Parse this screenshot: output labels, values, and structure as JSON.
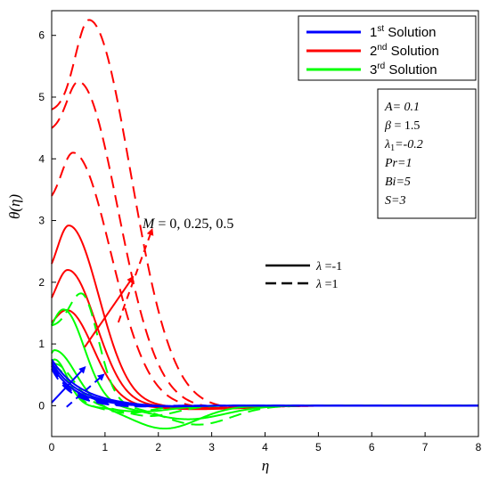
{
  "chart_data": {
    "type": "line",
    "xlabel": "η",
    "ylabel": "θ(η)",
    "xlim": [
      0,
      8
    ],
    "ylim": [
      -0.5,
      6.4
    ],
    "xticks": [
      "0",
      "1",
      "2",
      "3",
      "4",
      "5",
      "6",
      "7",
      "8"
    ],
    "yticks": [
      "0",
      "1",
      "2",
      "3",
      "4",
      "5",
      "6"
    ],
    "grid": false,
    "legend": {
      "placement": "top-right",
      "entries": [
        {
          "name": "1st Solution",
          "base": "1",
          "sup": "st",
          "rest": " Solution",
          "color": "#0000ff"
        },
        {
          "name": "2nd Solution",
          "base": "2",
          "sup": "nd",
          "rest": " Solution",
          "color": "#ff0000"
        },
        {
          "name": "3rd Solution",
          "base": "3",
          "sup": "rd",
          "rest": " Solution",
          "color": "#00ff00"
        }
      ]
    },
    "parameters": [
      "A= 0.1",
      "β = 1.5",
      "λ₁=-0.2",
      "Pr=1",
      "Bi=5",
      "S=3"
    ],
    "style_legend": [
      {
        "label": "λ =-1",
        "dash": "solid"
      },
      {
        "label": "λ =1",
        "dash": "dashed"
      }
    ],
    "annotation": "M = 0, 0.25, 0.5",
    "colors": {
      "first": "#0000ff",
      "second": "#ff0000",
      "third": "#00ff00"
    },
    "series": [
      {
        "solution": "1st",
        "lambda": -1,
        "M": 0,
        "peak": 0.75,
        "peak_x": 0.0,
        "decay": 1.8,
        "min": -0.02,
        "min_x": 2.0,
        "min_w": 0.8,
        "tail": 0.5
      },
      {
        "solution": "1st",
        "lambda": -1,
        "M": 0.25,
        "peak": 0.7,
        "peak_x": 0.0,
        "decay": 2.0,
        "min": -0.02,
        "min_x": 2.0,
        "min_w": 0.8,
        "tail": 0.5
      },
      {
        "solution": "1st",
        "lambda": -1,
        "M": 0.5,
        "peak": 0.65,
        "peak_x": 0.0,
        "decay": 2.2,
        "min": -0.02,
        "min_x": 2.0,
        "min_w": 0.8,
        "tail": 0.5
      },
      {
        "solution": "1st",
        "lambda": 1,
        "M": 0,
        "peak": 0.68,
        "peak_x": 0.0,
        "decay": 2.4,
        "min": -0.02,
        "min_x": 1.5,
        "min_w": 0.6,
        "tail": 0.4
      },
      {
        "solution": "1st",
        "lambda": 1,
        "M": 0.25,
        "peak": 0.64,
        "peak_x": 0.0,
        "decay": 2.6,
        "min": -0.02,
        "min_x": 1.5,
        "min_w": 0.6,
        "tail": 0.4
      },
      {
        "solution": "1st",
        "lambda": 1,
        "M": 0.5,
        "peak": 0.6,
        "peak_x": 0.0,
        "decay": 2.8,
        "min": -0.02,
        "min_x": 1.5,
        "min_w": 0.6,
        "tail": 0.4
      },
      {
        "solution": "2nd",
        "lambda": -1,
        "M": 0,
        "start": 1.75,
        "peak": 2.2,
        "peak_x": 0.3,
        "w_left": 0.3,
        "w_right": 0.75,
        "min": -0.04,
        "min_x": 3.0,
        "min_w": 1.0,
        "tail": 0.9
      },
      {
        "solution": "2nd",
        "lambda": -1,
        "M": 0.25,
        "start": 2.3,
        "peak": 2.92,
        "peak_x": 0.32,
        "w_left": 0.3,
        "w_right": 0.8,
        "min": -0.05,
        "min_x": 3.1,
        "min_w": 1.0,
        "tail": 0.9
      },
      {
        "solution": "2nd",
        "lambda": -1,
        "M": 0.5,
        "start": 1.35,
        "peak": 1.55,
        "peak_x": 0.28,
        "w_left": 0.3,
        "w_right": 0.7,
        "min": -0.06,
        "min_x": 2.7,
        "min_w": 1.0,
        "tail": 0.9
      },
      {
        "solution": "2nd",
        "lambda": 1,
        "M": 0,
        "start": 3.4,
        "peak": 4.1,
        "peak_x": 0.4,
        "w_left": 0.3,
        "w_right": 1.0,
        "min": -0.04,
        "min_x": 3.2,
        "min_w": 1.0,
        "tail": 1.0
      },
      {
        "solution": "2nd",
        "lambda": 1,
        "M": 0.25,
        "start": 4.5,
        "peak": 5.25,
        "peak_x": 0.5,
        "w_left": 0.3,
        "w_right": 1.05,
        "min": -0.04,
        "min_x": 3.2,
        "min_w": 1.0,
        "tail": 1.0
      },
      {
        "solution": "2nd",
        "lambda": 1,
        "M": 0.5,
        "start": 4.8,
        "peak": 6.25,
        "peak_x": 0.7,
        "w_left": 0.36,
        "w_right": 1.1,
        "min": -0.04,
        "min_x": 3.3,
        "min_w": 1.0,
        "tail": 1.0
      },
      {
        "solution": "3rd",
        "lambda": -1,
        "M": 0,
        "start": 0.85,
        "peak": 0.9,
        "peak_x": 0.05,
        "w_left": 0.1,
        "w_right": 0.55,
        "min": -0.45,
        "min_x": 2.05,
        "min_w": 0.9,
        "tail": 1.2
      },
      {
        "solution": "3rd",
        "lambda": -1,
        "M": 0.25,
        "start": 1.3,
        "peak": 1.56,
        "peak_x": 0.22,
        "w_left": 0.3,
        "w_right": 0.55,
        "min": -0.25,
        "min_x": 2.5,
        "min_w": 1.0,
        "tail": 1.2
      },
      {
        "solution": "3rd",
        "lambda": -1,
        "M": 0.5,
        "start": 0.7,
        "peak": 0.75,
        "peak_x": 0.05,
        "w_left": 0.1,
        "w_right": 0.35,
        "min": -0.12,
        "min_x": 1.6,
        "min_w": 0.8,
        "tail": 1.0
      },
      {
        "solution": "3rd",
        "lambda": 1,
        "M": 0,
        "start": 1.3,
        "peak": 1.82,
        "peak_x": 0.55,
        "w_left": 0.3,
        "w_right": 0.45,
        "min": -0.35,
        "min_x": 2.7,
        "min_w": 0.9,
        "tail": 1.3
      },
      {
        "solution": "3rd",
        "lambda": 1,
        "M": 0.25,
        "start": 0.65,
        "peak": 0.68,
        "peak_x": 0.05,
        "w_left": 0.1,
        "w_right": 0.5,
        "min": -0.2,
        "min_x": 1.8,
        "min_w": 0.7,
        "tail": 1.0
      },
      {
        "solution": "3rd",
        "lambda": 1,
        "M": 0.5,
        "start": 0.6,
        "peak": 0.62,
        "peak_x": 0.05,
        "w_left": 0.1,
        "w_right": 0.4,
        "min": -0.15,
        "min_x": 1.4,
        "min_w": 0.6,
        "tail": 0.9
      }
    ]
  }
}
